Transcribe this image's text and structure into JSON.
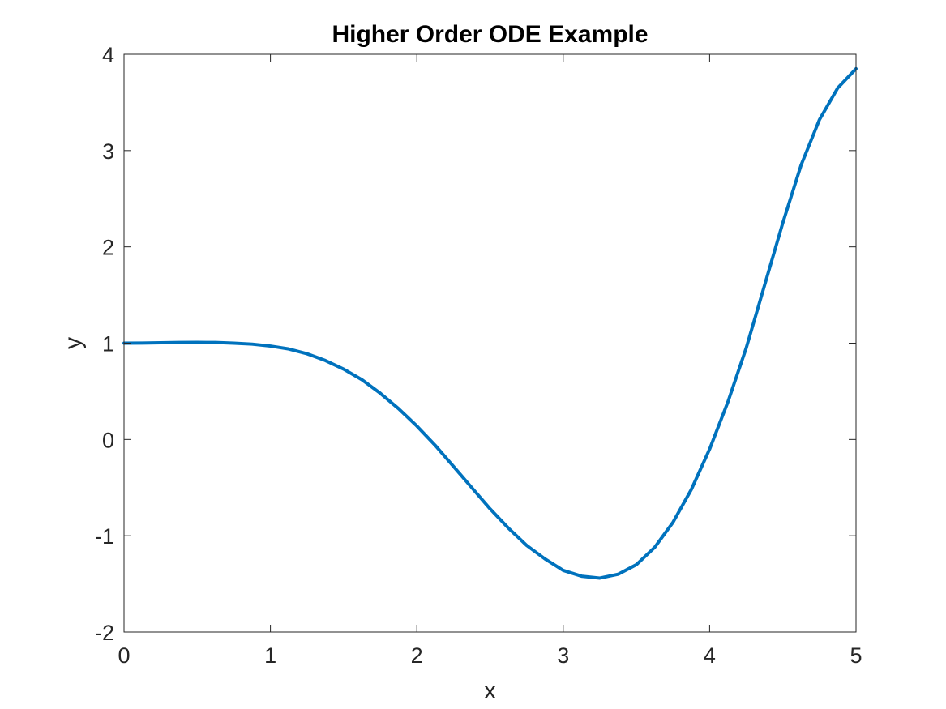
{
  "chart_data": {
    "type": "line",
    "title": "Higher Order ODE Example",
    "xlabel": "x",
    "ylabel": "y",
    "xlim": [
      0,
      5
    ],
    "ylim": [
      -2,
      4
    ],
    "xticks": [
      0,
      1,
      2,
      3,
      4,
      5
    ],
    "yticks": [
      -2,
      -1,
      0,
      1,
      2,
      3,
      4
    ],
    "xtick_labels": [
      "0",
      "1",
      "2",
      "3",
      "4",
      "5"
    ],
    "ytick_labels": [
      "-2",
      "-1",
      "0",
      "1",
      "2",
      "3",
      "4"
    ],
    "grid": false,
    "legend": false,
    "series": [
      {
        "color": "#0072BD",
        "x": [
          0,
          0.125,
          0.25,
          0.375,
          0.5,
          0.625,
          0.75,
          0.875,
          1.0,
          1.125,
          1.25,
          1.375,
          1.5,
          1.625,
          1.75,
          1.875,
          2.0,
          2.125,
          2.25,
          2.375,
          2.5,
          2.625,
          2.75,
          2.875,
          3.0,
          3.125,
          3.25,
          3.375,
          3.5,
          3.625,
          3.75,
          3.875,
          4.0,
          4.125,
          4.25,
          4.375,
          4.5,
          4.625,
          4.75,
          4.875,
          5.0
        ],
        "y": [
          1.0,
          1.001,
          1.004,
          1.007,
          1.008,
          1.007,
          1.0,
          0.99,
          0.97,
          0.94,
          0.89,
          0.82,
          0.73,
          0.62,
          0.48,
          0.32,
          0.14,
          -0.06,
          -0.28,
          -0.5,
          -0.72,
          -0.92,
          -1.1,
          -1.24,
          -1.36,
          -1.42,
          -1.44,
          -1.4,
          -1.3,
          -1.12,
          -0.86,
          -0.52,
          -0.1,
          0.39,
          0.95,
          1.6,
          2.25,
          2.85,
          3.32,
          3.65,
          3.85
        ]
      }
    ]
  }
}
